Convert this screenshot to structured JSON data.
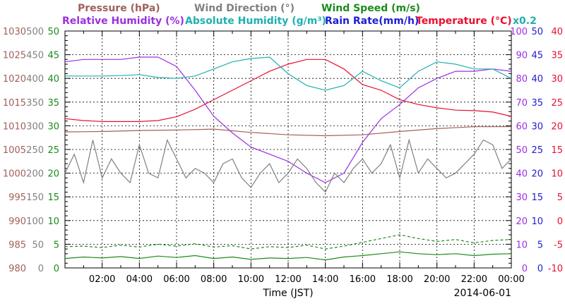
{
  "chart_data": {
    "type": "line",
    "date": "2014-06-01",
    "xlabel": "Time (JST)",
    "x_ticks": [
      "02:00",
      "04:00",
      "06:00",
      "08:00",
      "10:00",
      "12:00",
      "14:00",
      "16:00",
      "18:00",
      "20:00",
      "22:00",
      "00:00"
    ],
    "x_range_hours": [
      0,
      24
    ],
    "grid": true,
    "legend": {
      "row1": [
        {
          "key": "pressure",
          "label": "Pressure (hPa)",
          "color": "#a0605a"
        },
        {
          "key": "wind_dir",
          "label": "Wind Direction (°)",
          "color": "#808080"
        },
        {
          "key": "wind_speed",
          "label": "Wind Speed (m/s)",
          "color": "#1a8c1a"
        }
      ],
      "row2": [
        {
          "key": "rh",
          "label": "Relative Humidity (%)",
          "color": "#9a30e0"
        },
        {
          "key": "ah",
          "label": "Absolute Humidity (g/m³)",
          "color": "#20b0b0"
        },
        {
          "key": "rain",
          "label": "Rain Rate(mm/h)",
          "color": "#2020d0"
        },
        {
          "key": "temp",
          "label": "Temperature (°C)",
          "color": "#e81030"
        }
      ],
      "scale_note": {
        "text": "x0.2",
        "color": "#20b0b0"
      }
    },
    "axes": {
      "pressure": {
        "color": "#a0605a",
        "ticks": [
          "980",
          "985",
          "990",
          "995",
          "1000",
          "1005",
          "1010",
          "1015",
          "1020",
          "1025",
          "1030"
        ]
      },
      "wind_dir": {
        "color": "#808080",
        "ticks": [
          "0",
          "50",
          "100",
          "150",
          "200",
          "250",
          "300",
          "350",
          "400",
          "450",
          "500"
        ]
      },
      "wind_speed": {
        "color": "#1a8c1a",
        "ticks": [
          "0",
          "5",
          "10",
          "15",
          "20",
          "25",
          "30",
          "35",
          "40",
          "45",
          "50"
        ]
      },
      "rh": {
        "color": "#9a30e0",
        "ticks": [
          "0",
          "10",
          "20",
          "30",
          "40",
          "50",
          "60",
          "70",
          "80",
          "90",
          "100"
        ]
      },
      "rain": {
        "color": "#2020d0",
        "ticks": [
          "0",
          "5",
          "10",
          "15",
          "20",
          "25",
          "30",
          "35",
          "40",
          "45",
          "50"
        ]
      },
      "temp": {
        "color": "#e81030",
        "ticks": [
          "-10",
          "-5",
          "0",
          "5",
          "10",
          "15",
          "20",
          "25",
          "30",
          "35",
          "40"
        ]
      }
    },
    "series": [
      {
        "key": "temp",
        "color": "#e81030",
        "axis": "temp",
        "x": [
          0,
          1,
          2,
          3,
          4,
          5,
          6,
          7,
          8,
          9,
          10,
          11,
          12,
          13,
          14,
          15,
          16,
          17,
          18,
          19,
          20,
          21,
          22,
          23,
          24
        ],
        "y": [
          21.5,
          21.1,
          20.9,
          20.9,
          20.9,
          21.1,
          21.9,
          23.5,
          25.5,
          27.5,
          29.5,
          31.5,
          33.0,
          34.0,
          34.0,
          32.0,
          28.7,
          27.5,
          25.5,
          24.5,
          23.8,
          23.3,
          23.2,
          22.9,
          22.0
        ]
      },
      {
        "key": "rh",
        "color": "#9a30e0",
        "axis": "rh",
        "x": [
          0,
          1,
          2,
          3,
          4,
          5,
          6,
          7,
          8,
          9,
          10,
          11,
          12,
          13,
          14,
          15,
          16,
          17,
          18,
          19,
          20,
          21,
          22,
          23,
          24
        ],
        "y": [
          87,
          88,
          88,
          88,
          89,
          89,
          85,
          75,
          64,
          57,
          51,
          48,
          45,
          40,
          36,
          40,
          53,
          63,
          69,
          76,
          80,
          83,
          83,
          84,
          83
        ]
      },
      {
        "key": "ah",
        "color": "#20b0b0",
        "axis": "wind_speed",
        "x": [
          0,
          1,
          2,
          3,
          4,
          5,
          6,
          7,
          8,
          9,
          10,
          11,
          12,
          13,
          14,
          15,
          16,
          17,
          18,
          19,
          20,
          21,
          22,
          23,
          24
        ],
        "y": [
          40.5,
          40.5,
          40.5,
          40.6,
          40.8,
          40.2,
          40.0,
          40.5,
          42.0,
          43.5,
          44.2,
          44.5,
          41.0,
          38.5,
          37.5,
          38.5,
          41.5,
          39.5,
          38.0,
          41.5,
          43.5,
          43.0,
          42.0,
          42.0,
          40.0
        ]
      },
      {
        "key": "pressure",
        "color": "#a0605a",
        "axis": "pressure",
        "x": [
          0,
          2,
          4,
          6,
          8,
          10,
          12,
          14,
          16,
          18,
          20,
          22,
          24
        ],
        "y": [
          1008.7,
          1008.8,
          1009.0,
          1009.1,
          1009.3,
          1008.6,
          1008.1,
          1007.9,
          1008.1,
          1008.8,
          1009.4,
          1009.8,
          1009.8
        ]
      },
      {
        "key": "wind_dir",
        "color": "#808080",
        "axis": "wind_dir",
        "x": [
          0,
          0.5,
          1,
          1.5,
          2,
          2.5,
          3,
          3.5,
          4,
          4.5,
          5,
          5.5,
          6,
          6.5,
          7,
          7.5,
          8,
          8.5,
          9,
          9.5,
          10,
          10.5,
          11,
          11.5,
          12,
          12.5,
          13,
          13.5,
          14,
          14.5,
          15,
          15.5,
          16,
          16.5,
          17,
          17.5,
          18,
          18.5,
          19,
          19.5,
          20,
          20.5,
          21,
          21.5,
          22,
          22.5,
          23,
          23.5,
          24
        ],
        "y": [
          200,
          240,
          180,
          270,
          190,
          230,
          200,
          180,
          260,
          200,
          190,
          270,
          230,
          190,
          210,
          200,
          180,
          220,
          230,
          190,
          170,
          200,
          220,
          180,
          200,
          230,
          210,
          180,
          160,
          200,
          180,
          210,
          230,
          200,
          220,
          260,
          190,
          270,
          200,
          230,
          210,
          190,
          200,
          220,
          240,
          270,
          260,
          210,
          230
        ]
      },
      {
        "key": "wind_speed",
        "color": "#1a8c1a",
        "axis": "wind_speed",
        "x": [
          0,
          1,
          2,
          3,
          4,
          5,
          6,
          7,
          8,
          9,
          10,
          11,
          12,
          13,
          14,
          15,
          16,
          17,
          18,
          19,
          20,
          21,
          22,
          23,
          24
        ],
        "y": [
          2.0,
          2.3,
          2.1,
          2.4,
          2.0,
          2.5,
          2.2,
          2.6,
          2.0,
          2.3,
          1.8,
          2.1,
          2.0,
          2.2,
          1.7,
          2.3,
          2.6,
          3.0,
          3.4,
          3.0,
          2.8,
          3.0,
          2.6,
          2.9,
          3.0
        ]
      },
      {
        "key": "wind_gust",
        "color": "#1a8c1a",
        "axis": "wind_speed",
        "dashed": true,
        "x": [
          0,
          1,
          2,
          3,
          4,
          5,
          6,
          7,
          8,
          9,
          10,
          11,
          12,
          13,
          14,
          15,
          16,
          17,
          18,
          19,
          20,
          21,
          22,
          23,
          24
        ],
        "y": [
          4.5,
          4.6,
          4.3,
          4.8,
          4.4,
          5.0,
          4.6,
          5.1,
          4.4,
          4.7,
          4.0,
          4.5,
          4.3,
          4.8,
          4.0,
          4.6,
          5.4,
          6.2,
          7.0,
          6.2,
          5.6,
          6.0,
          5.3,
          5.8,
          6.0
        ]
      }
    ]
  }
}
